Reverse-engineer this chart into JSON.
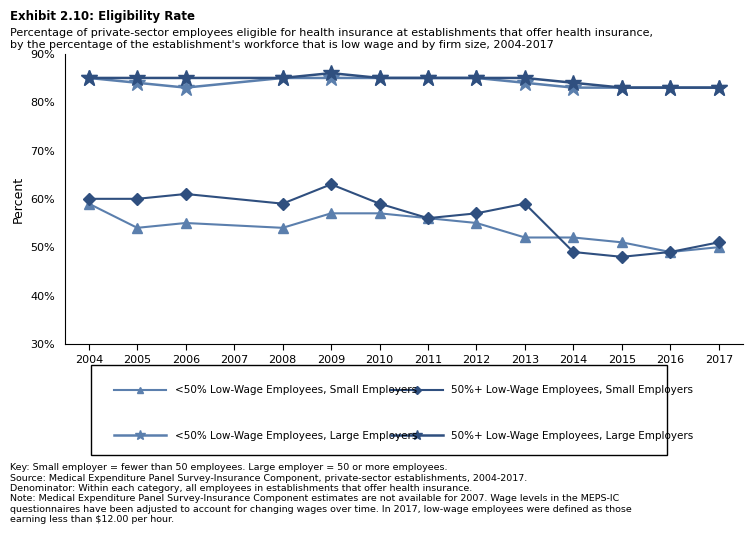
{
  "title_line1": "Exhibit 2.10: Eligibility Rate",
  "title_line2": "Percentage of private-sector employees eligible for health insurance at establishments that offer health insurance,\nby the percentage of the establishment's workforce that is low wage and by firm size, 2004-2017",
  "years": [
    2004,
    2005,
    2006,
    2007,
    2008,
    2009,
    2010,
    2011,
    2012,
    2013,
    2014,
    2015,
    2016,
    2017
  ],
  "series": {
    "lt50_small": {
      "label": "<50% Low-Wage Employees, Small Employers",
      "values": [
        59,
        54,
        55,
        null,
        54,
        57,
        57,
        56,
        55,
        52,
        52,
        51,
        49,
        50
      ],
      "color": "#5b7fad",
      "marker": "^",
      "linestyle": "-",
      "linewidth": 1.5,
      "markersize": 7
    },
    "gt50_small": {
      "label": "50%+ Low-Wage Employees, Small Employers",
      "values": [
        60,
        60,
        61,
        null,
        59,
        63,
        59,
        56,
        57,
        59,
        49,
        48,
        49,
        51
      ],
      "color": "#2f4f7f",
      "marker": "D",
      "linestyle": "-",
      "linewidth": 1.5,
      "markersize": 6
    },
    "lt50_large": {
      "label": "<50% Low-Wage Employees, Large Employers",
      "values": [
        85,
        84,
        83,
        null,
        85,
        85,
        85,
        85,
        85,
        84,
        83,
        83,
        83,
        83
      ],
      "color": "#5b7fad",
      "marker": "*",
      "linestyle": "-",
      "linewidth": 1.8,
      "markersize": 12
    },
    "gt50_large": {
      "label": "50%+ Low-Wage Employees, Large Employers",
      "values": [
        85,
        85,
        85,
        null,
        85,
        86,
        85,
        85,
        85,
        85,
        84,
        83,
        83,
        83
      ],
      "color": "#2f4f7f",
      "marker": "*",
      "linestyle": "-",
      "linewidth": 1.8,
      "markersize": 12
    }
  },
  "ylabel": "Percent",
  "ylim": [
    30,
    90
  ],
  "yticks": [
    30,
    40,
    50,
    60,
    70,
    80,
    90
  ],
  "note_key": "Key: Small employer = fewer than 50 employees. Large employer = 50 or more employees.",
  "note_source": "Source: Medical Expenditure Panel Survey-Insurance Component, private-sector establishments, 2004-2017.",
  "note_denom": "Denominator: Within each category, all employees in establishments that offer health insurance.",
  "note_note": "Note: Medical Expenditure Panel Survey-Insurance Component estimates are not available for 2007. Wage levels in the MEPS-IC\nquestionnaires have been adjusted to account for changing wages over time. In 2017, low-wage employees were defined as those\nearning less than $12.00 per hour."
}
